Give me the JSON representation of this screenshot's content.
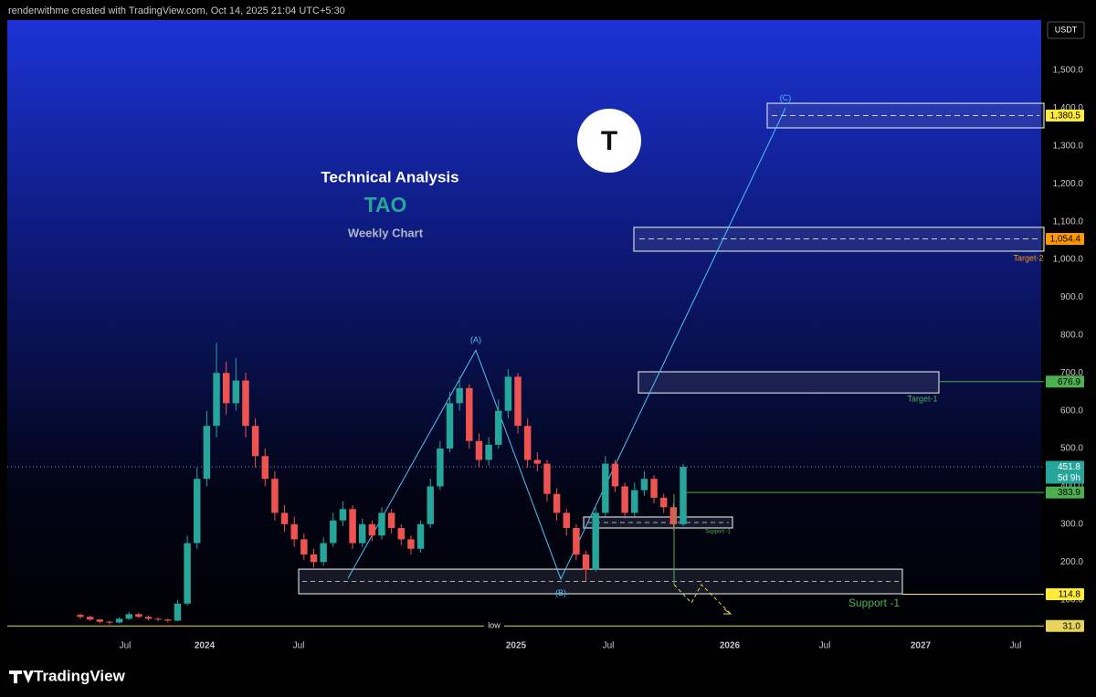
{
  "header": {
    "text": "renderwithme created with TradingView.com, Oct 14, 2025 21:04 UTC+5:30"
  },
  "chart_data": {
    "type": "candlestick",
    "title": "Technical Analysis",
    "subtitle": "TAO",
    "note": "Weekly Chart",
    "logo": "T",
    "currency": "USDT",
    "ylim": [
      -41,
      1633
    ],
    "yticks": [
      {
        "value": 100,
        "label": "100.0"
      },
      {
        "value": 200,
        "label": "200.0"
      },
      {
        "value": 300,
        "label": "300.0"
      },
      {
        "value": 400,
        "label": "400.0"
      },
      {
        "value": 500,
        "label": "500.0"
      },
      {
        "value": 600,
        "label": "600.0"
      },
      {
        "value": 700,
        "label": "700.0"
      },
      {
        "value": 800,
        "label": "800.0"
      },
      {
        "value": 900,
        "label": "900.0"
      },
      {
        "value": 1000,
        "label": "1,000.0"
      },
      {
        "value": 1100,
        "label": "1,100.0"
      },
      {
        "value": 1200,
        "label": "1,200.0"
      },
      {
        "value": 1300,
        "label": "1,300.0"
      },
      {
        "value": 1400,
        "label": "1,400.0"
      },
      {
        "value": 1500,
        "label": "1,500.0"
      }
    ],
    "xticks": [
      "Jul",
      "2024",
      "Jul",
      "2025",
      "Jul",
      "2026",
      "Jul",
      "2027",
      "Jul"
    ],
    "up_color": "#26a69a",
    "down_color": "#ef5350",
    "candles": {
      "open": [
        60,
        55,
        48,
        42,
        40,
        50,
        62,
        55,
        50,
        48,
        45,
        90,
        250,
        420,
        560,
        700,
        620,
        680,
        560,
        480,
        420,
        330,
        300,
        260,
        220,
        200,
        250,
        310,
        340,
        250,
        300,
        270,
        330,
        290,
        260,
        235,
        300,
        400,
        500,
        620,
        660,
        520,
        470,
        510,
        600,
        690,
        560,
        470,
        460,
        380,
        330,
        290,
        220,
        180,
        330,
        460,
        400,
        330,
        390,
        420,
        370,
        345,
        300
      ],
      "high": [
        64,
        58,
        50,
        45,
        54,
        68,
        66,
        58,
        54,
        50,
        100,
        270,
        450,
        600,
        780,
        730,
        740,
        700,
        580,
        500,
        440,
        350,
        320,
        275,
        235,
        265,
        330,
        360,
        350,
        315,
        310,
        345,
        340,
        300,
        270,
        310,
        420,
        520,
        650,
        690,
        670,
        540,
        530,
        630,
        710,
        700,
        580,
        490,
        470,
        395,
        340,
        300,
        230,
        345,
        480,
        470,
        410,
        410,
        440,
        430,
        380,
        355,
        460
      ],
      "low": [
        50,
        44,
        38,
        35,
        38,
        47,
        52,
        46,
        44,
        40,
        43,
        85,
        235,
        400,
        530,
        590,
        600,
        530,
        450,
        400,
        310,
        280,
        240,
        205,
        185,
        190,
        240,
        295,
        235,
        240,
        255,
        260,
        275,
        245,
        220,
        225,
        290,
        390,
        490,
        600,
        500,
        450,
        455,
        500,
        580,
        540,
        450,
        440,
        360,
        310,
        270,
        205,
        150,
        175,
        320,
        385,
        315,
        320,
        375,
        355,
        330,
        285,
        295
      ],
      "close": [
        55,
        48,
        42,
        40,
        50,
        62,
        55,
        50,
        48,
        45,
        90,
        250,
        420,
        560,
        700,
        620,
        680,
        560,
        480,
        420,
        330,
        300,
        260,
        220,
        200,
        250,
        310,
        340,
        250,
        300,
        270,
        330,
        290,
        260,
        235,
        300,
        400,
        500,
        620,
        660,
        520,
        470,
        510,
        600,
        690,
        560,
        470,
        460,
        380,
        330,
        290,
        220,
        180,
        330,
        460,
        400,
        330,
        390,
        420,
        370,
        345,
        300,
        451.8
      ]
    },
    "levels": [
      {
        "price": {
          "value": 1380.5,
          "label": "1,380.5"
        },
        "color": "#ffeb3b"
      },
      {
        "price": {
          "value": 1054.4,
          "label": "1,054.4"
        },
        "color": "#ff9800"
      },
      {
        "price": 676.9,
        "color": "#4caf50"
      },
      {
        "price": 451.8,
        "color": "#26a69a"
      },
      {
        "price": 383.9,
        "color": "#4caf50"
      },
      {
        "price": 114.8,
        "color": "#ffeb3b"
      },
      {
        "price": {
          "value": 31,
          "label": "31.0"
        },
        "color": "#e6d55a",
        "name": "low"
      }
    ],
    "countdown": "5d 9h",
    "zones": [
      {
        "low": 1348,
        "high": 1413
      },
      {
        "low": 1022,
        "high": 1085,
        "label": "Target-2"
      },
      {
        "low": 647,
        "high": 703,
        "label": "Target-1"
      },
      {
        "low": 290,
        "high": 319,
        "label": "Support -1"
      },
      {
        "low": 116,
        "high": 181,
        "label": "Support -1"
      }
    ],
    "wave": {
      "values": [
        157,
        760,
        155,
        1400
      ],
      "labels": [
        null,
        "(A)",
        "(B)",
        "(C)"
      ],
      "color": "#4fc3f7"
    }
  },
  "footer": {
    "brand": "TradingView"
  }
}
